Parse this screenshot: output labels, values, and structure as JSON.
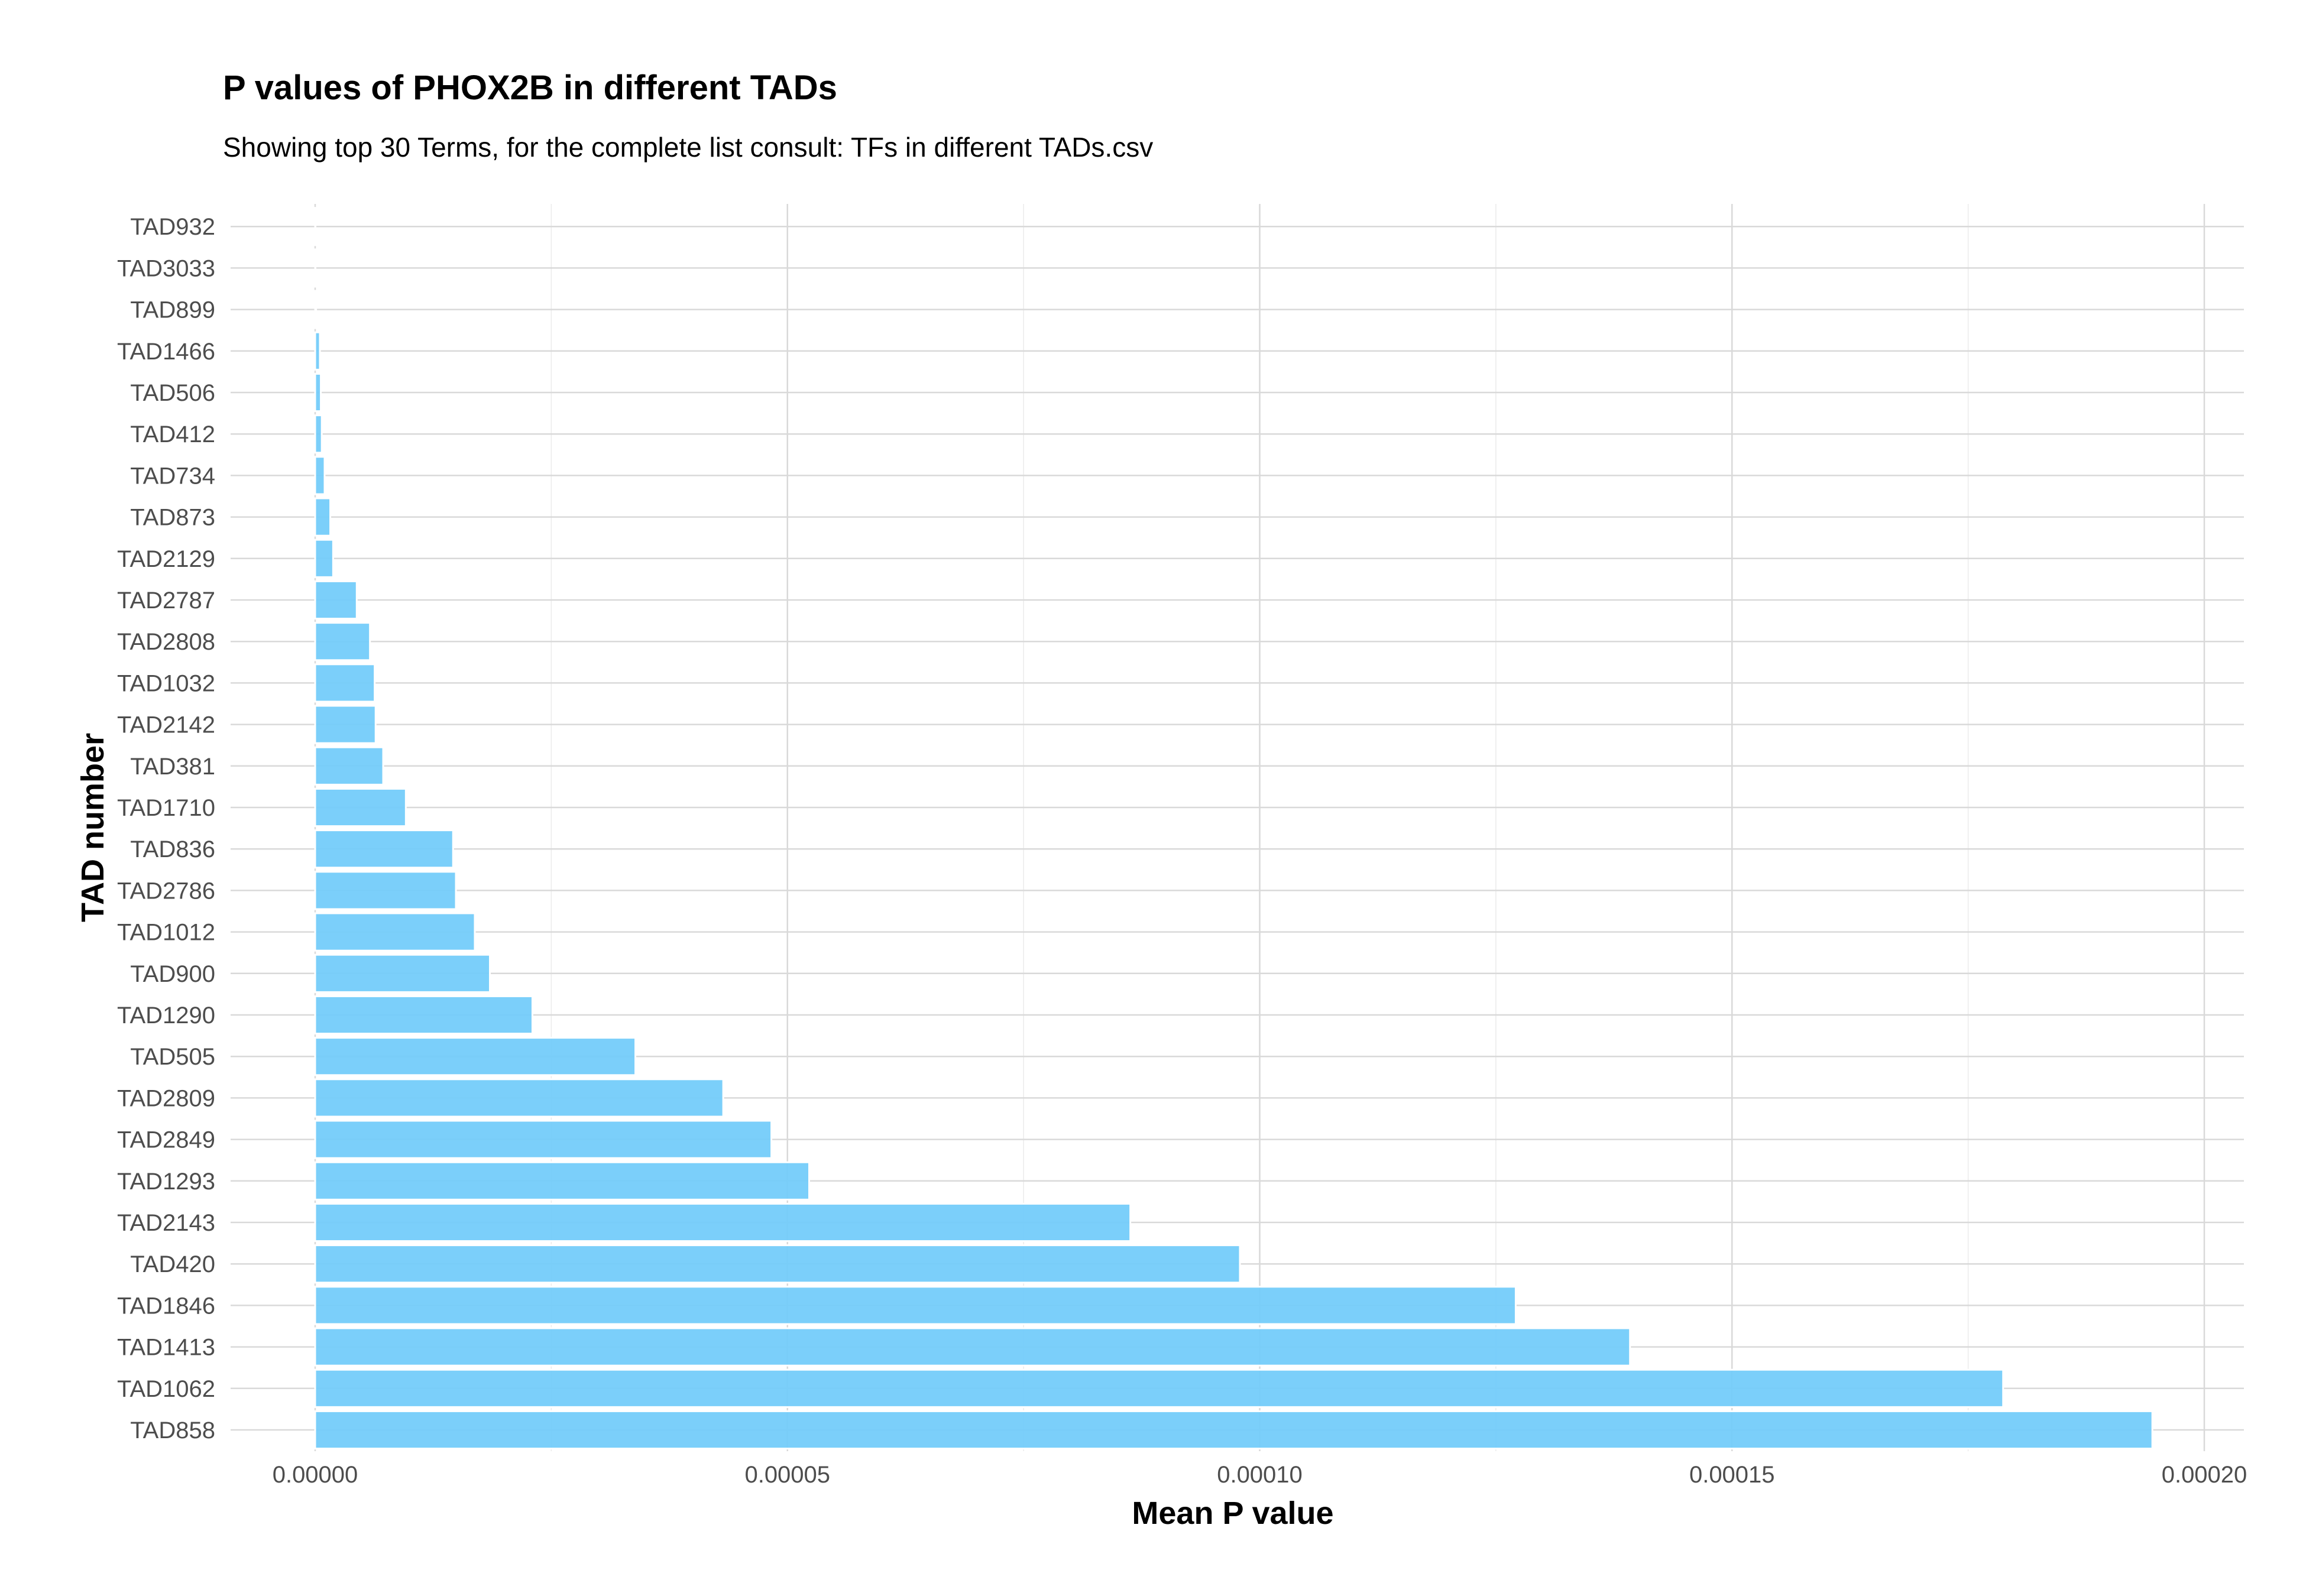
{
  "chart_data": {
    "type": "bar",
    "orientation": "horizontal",
    "title": "P values of PHOX2B in different TADs",
    "subtitle": "Showing top 30 Terms, for the complete list consult: TFs in different TADs.csv",
    "xlabel": "Mean P value",
    "ylabel": "TAD number",
    "xlim": [
      -9e-06,
      0.000204
    ],
    "x_ticks": [
      0,
      5e-05,
      0.0001,
      0.00015,
      0.0002
    ],
    "x_tick_labels": [
      "0.00000",
      "0.00005",
      "0.00010",
      "0.00015",
      "0.00020"
    ],
    "grid": true,
    "bar_color": "#74CCFA",
    "categories": [
      "TAD858",
      "TAD1062",
      "TAD1413",
      "TAD1846",
      "TAD420",
      "TAD2143",
      "TAD1293",
      "TAD2849",
      "TAD2809",
      "TAD505",
      "TAD1290",
      "TAD900",
      "TAD1012",
      "TAD2786",
      "TAD836",
      "TAD1710",
      "TAD381",
      "TAD2142",
      "TAD1032",
      "TAD2808",
      "TAD2787",
      "TAD2129",
      "TAD873",
      "TAD734",
      "TAD412",
      "TAD506",
      "TAD1466",
      "TAD899",
      "TAD3033",
      "TAD932"
    ],
    "values": [
      0.0001945,
      0.0001787,
      0.0001392,
      0.0001271,
      9.79e-05,
      8.63e-05,
      5.23e-05,
      4.83e-05,
      4.32e-05,
      3.39e-05,
      2.3e-05,
      1.85e-05,
      1.69e-05,
      1.49e-05,
      1.46e-05,
      9.6e-06,
      7.2e-06,
      6.4e-06,
      6.3e-06,
      5.8e-06,
      4.4e-06,
      1.9e-06,
      1.6e-06,
      1e-06,
      7e-07,
      6e-07,
      5e-07,
      1e-07,
      3e-08,
      1e-08
    ]
  }
}
